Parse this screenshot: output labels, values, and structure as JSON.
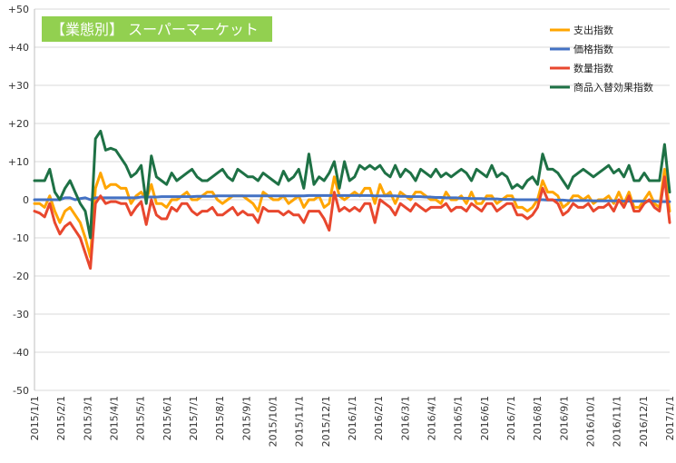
{
  "chart_data": {
    "type": "line",
    "title": "【業態別】 スーパーマーケット",
    "title_bg": "#92d050",
    "ylim": [
      -50,
      50
    ],
    "yticks": [
      "+50",
      "+40",
      "+30",
      "+20",
      "+10",
      "0",
      "-10",
      "-20",
      "-30",
      "-40",
      "-50"
    ],
    "ytick_values": [
      50,
      40,
      30,
      20,
      10,
      0,
      -10,
      -20,
      -30,
      -40,
      -50
    ],
    "x_labels": [
      "2015/1/1",
      "2015/2/1",
      "2015/3/1",
      "2015/4/1",
      "2015/5/1",
      "2015/6/1",
      "2015/7/1",
      "2015/8/1",
      "2015/9/1",
      "2015/10/1",
      "2015/11/1",
      "2015/12/1",
      "2016/1/1",
      "2016/2/1",
      "2016/3/1",
      "2016/4/1",
      "2016/5/1",
      "2016/6/1",
      "2016/7/1",
      "2016/8/1",
      "2016/9/1",
      "2016/10/1",
      "2016/11/1",
      "2016/12/1",
      "2017/1/1"
    ],
    "grid": true,
    "legend_position": "top-right",
    "series": [
      {
        "name": "支出指数",
        "color": "#ffa500",
        "values": [
          -1,
          -1,
          -2,
          1,
          -3,
          -6,
          -3,
          -2,
          -4,
          -6,
          -10,
          -15,
          3,
          7,
          3,
          4,
          4,
          3,
          3,
          -1,
          1,
          2,
          0,
          4,
          -1,
          -1,
          -2,
          0,
          0,
          1,
          2,
          0,
          0,
          1,
          2,
          2,
          0,
          -1,
          0,
          1,
          1,
          1,
          0,
          -1,
          -3,
          2,
          1,
          0,
          0,
          1,
          -1,
          0,
          1,
          -2,
          0,
          0,
          1,
          -2,
          -1,
          6,
          1,
          0,
          1,
          2,
          1,
          3,
          3,
          -1,
          4,
          1,
          2,
          -1,
          2,
          1,
          0,
          2,
          2,
          1,
          0,
          0,
          -1,
          2,
          0,
          0,
          1,
          -1,
          2,
          -1,
          -1,
          1,
          1,
          -1,
          0,
          1,
          1,
          -2,
          -2,
          -3,
          -2,
          0,
          5,
          2,
          2,
          1,
          -2,
          -1,
          1,
          1,
          0,
          1,
          -1,
          0,
          0,
          1,
          -1,
          2,
          -1,
          2,
          -2,
          -2,
          0,
          2,
          -1,
          -2,
          8,
          -3
        ]
      },
      {
        "name": "価格指数",
        "color": "#4472c4",
        "values": [
          0,
          0,
          0,
          0,
          0,
          0,
          0.5,
          0.5,
          0,
          0.3,
          0.5,
          0,
          0.5,
          0.5,
          0.5,
          0.5,
          0.5,
          0.5,
          0.5,
          0.5,
          0.5,
          0.7,
          0.7,
          0.7,
          0.7,
          0.8,
          0.8,
          0.8,
          0.8,
          0.8,
          0.8,
          0.8,
          0.9,
          0.9,
          0.9,
          0.9,
          1,
          1,
          1,
          1,
          1,
          1,
          1,
          1,
          1,
          1,
          1,
          1,
          1,
          1,
          1,
          1,
          1,
          1,
          1.1,
          1.1,
          1.1,
          1.1,
          1.1,
          1.1,
          1.1,
          1.1,
          1.1,
          1.1,
          1.1,
          1.1,
          1.1,
          1,
          1,
          1,
          1,
          1,
          0.9,
          0.9,
          0.8,
          0.8,
          0.8,
          0.7,
          0.7,
          0.6,
          0.6,
          0.5,
          0.5,
          0.5,
          0.4,
          0.4,
          0.3,
          0.3,
          0.3,
          0.2,
          0.2,
          0.2,
          0.1,
          0.1,
          0.1,
          0,
          0,
          0,
          0,
          0,
          0,
          -0.1,
          -0.1,
          -0.1,
          -0.1,
          -0.2,
          -0.2,
          -0.2,
          -0.2,
          -0.2,
          -0.3,
          -0.3,
          -0.3,
          -0.3,
          -0.3,
          -0.3,
          -0.4,
          -0.4,
          -0.4,
          -0.4,
          -0.4,
          -0.4,
          -0.4,
          -0.5,
          -0.5,
          -0.5
        ]
      },
      {
        "name": "数量指数",
        "color": "#e8472e",
        "values": [
          -3,
          -3.5,
          -4.5,
          -1,
          -6,
          -9,
          -7,
          -6,
          -8,
          -10,
          -14,
          -18,
          -1,
          1,
          -1,
          -0.5,
          -0.5,
          -1,
          -1,
          -4,
          -2,
          -0.5,
          -6.5,
          0,
          -4,
          -5,
          -5,
          -2,
          -3,
          -1,
          -1,
          -3,
          -4,
          -3,
          -3,
          -2,
          -4,
          -4,
          -3,
          -2,
          -4,
          -3,
          -4,
          -4,
          -6,
          -2,
          -3,
          -3,
          -3,
          -4,
          -3,
          -4,
          -4,
          -6,
          -3,
          -3,
          -3,
          -5,
          -8,
          2,
          -3,
          -2,
          -3,
          -2,
          -3,
          -1,
          -1,
          -6,
          0,
          -1,
          -2,
          -4,
          -1,
          -2,
          -3,
          -1,
          -2,
          -3,
          -2,
          -2,
          -2,
          -1,
          -3,
          -2,
          -2,
          -3,
          -1,
          -2,
          -3,
          -1,
          -1,
          -3,
          -2,
          -1,
          -1,
          -4,
          -4,
          -5,
          -4,
          -2,
          3,
          0,
          0,
          -1,
          -4,
          -3,
          -1,
          -2,
          -2,
          -1,
          -3,
          -2,
          -2,
          -1,
          -3,
          0,
          -2,
          1,
          -3,
          -3,
          -1,
          0,
          -2,
          -3,
          6,
          -6
        ]
      },
      {
        "name": "商品入替効果指数",
        "color": "#1e7145",
        "values": [
          5,
          5,
          5,
          8,
          2,
          0,
          3,
          5,
          2,
          -1,
          -3,
          -10,
          16,
          18,
          13,
          13.5,
          13,
          11,
          9,
          6,
          7,
          9,
          -1,
          11.5,
          6,
          5,
          4,
          7,
          5,
          6,
          7,
          8,
          6,
          5,
          5,
          6,
          7,
          8,
          6,
          5,
          8,
          7,
          6,
          6,
          5,
          7,
          6,
          5,
          4,
          7.5,
          5,
          6,
          8,
          3,
          12,
          4,
          6,
          5,
          7,
          10,
          3,
          10,
          5,
          6,
          9,
          8,
          9,
          8,
          9,
          7,
          6,
          9,
          6,
          8,
          7,
          5,
          8,
          7,
          6,
          8,
          6,
          7,
          6,
          7,
          8,
          7,
          5,
          8,
          7,
          6,
          9,
          6,
          7,
          6,
          3,
          4,
          3,
          5,
          6,
          4,
          12,
          8,
          8,
          7,
          5,
          3,
          6,
          7,
          8,
          7,
          6,
          7,
          8,
          9,
          7,
          8,
          6,
          9,
          5,
          5,
          7,
          5,
          5,
          5,
          14.5,
          2
        ]
      }
    ]
  }
}
